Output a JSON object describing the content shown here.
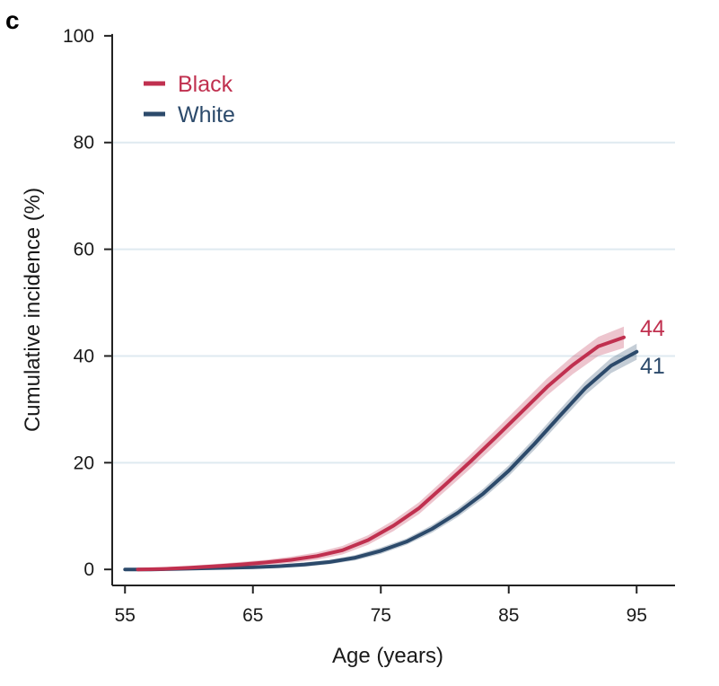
{
  "panel_label": "c",
  "colors": {
    "black_series": "#c0304f",
    "white_series": "#2c4a6b",
    "grid": "#dfeaf0",
    "axis": "#222222"
  },
  "chart_data": {
    "type": "line",
    "title": "",
    "xlabel": "Age (years)",
    "ylabel": "Cumulative incidence (%)",
    "xlim": [
      54,
      98
    ],
    "ylim": [
      -3,
      102
    ],
    "xticks": [
      55,
      65,
      75,
      85,
      95
    ],
    "yticks": [
      0,
      20,
      40,
      60,
      80,
      100
    ],
    "grid": true,
    "legend_position": "top-left",
    "series": [
      {
        "name": "Black",
        "end_label": "44",
        "x": [
          56,
          58,
          60,
          62,
          64,
          66,
          68,
          70,
          72,
          74,
          76,
          78,
          80,
          82,
          84,
          86,
          88,
          90,
          92,
          94
        ],
        "y": [
          0,
          0.1,
          0.3,
          0.6,
          0.9,
          1.3,
          1.8,
          2.5,
          3.6,
          5.5,
          8.2,
          11.5,
          15.8,
          20.2,
          24.8,
          29.5,
          34.2,
          38.3,
          41.8,
          43.5
        ],
        "ci_halfwidth": [
          0.3,
          0.3,
          0.4,
          0.4,
          0.5,
          0.5,
          0.6,
          0.7,
          0.8,
          0.9,
          1.0,
          1.1,
          1.2,
          1.3,
          1.4,
          1.5,
          1.6,
          1.7,
          1.8,
          2.0
        ]
      },
      {
        "name": "White",
        "end_label": "41",
        "x": [
          55,
          57,
          59,
          61,
          63,
          65,
          67,
          69,
          71,
          73,
          75,
          77,
          79,
          81,
          83,
          85,
          87,
          89,
          91,
          93,
          95
        ],
        "y": [
          0,
          0,
          0.1,
          0.2,
          0.3,
          0.4,
          0.6,
          0.9,
          1.4,
          2.2,
          3.5,
          5.2,
          7.6,
          10.6,
          14.2,
          18.5,
          23.5,
          28.8,
          34.0,
          38.2,
          40.8
        ],
        "ci_halfwidth": [
          0.2,
          0.2,
          0.2,
          0.2,
          0.3,
          0.3,
          0.3,
          0.4,
          0.4,
          0.5,
          0.6,
          0.6,
          0.7,
          0.8,
          0.9,
          1.0,
          1.1,
          1.2,
          1.3,
          1.4,
          1.5
        ]
      }
    ]
  }
}
